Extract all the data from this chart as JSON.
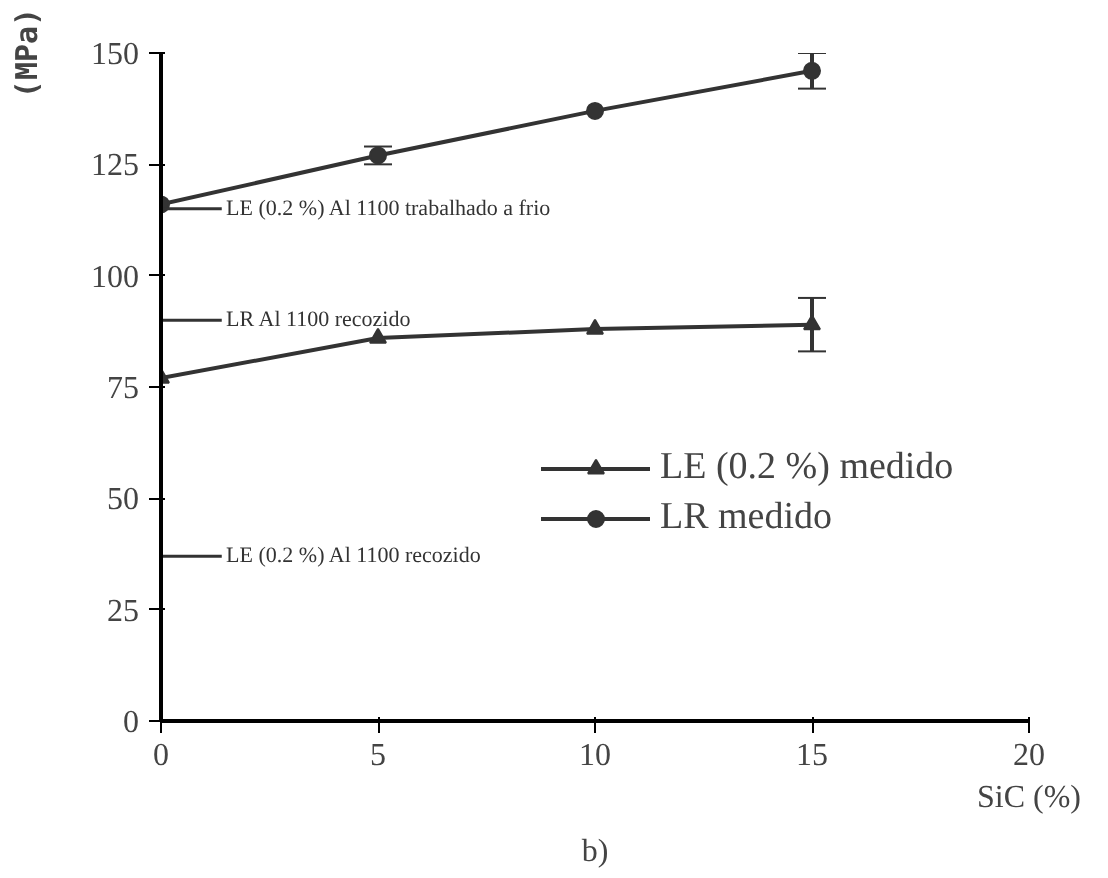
{
  "chart_data": {
    "type": "line",
    "xlabel": "SiC (%)",
    "ylabel": "(MPa)",
    "x": [
      0,
      5,
      10,
      15
    ],
    "xlim": [
      0,
      20
    ],
    "ylim": [
      0,
      150
    ],
    "xticks": [
      0,
      5,
      10,
      15,
      20
    ],
    "yticks": [
      0,
      25,
      50,
      75,
      100,
      125,
      150
    ],
    "grid": false,
    "legend": "right",
    "line_style": "solid",
    "series": [
      {
        "name": "LE (0.2 %) medido",
        "color": "#333333",
        "marker": "triangle",
        "values": [
          77,
          86,
          88,
          89
        ],
        "errors": [
          null,
          null,
          null,
          6
        ]
      },
      {
        "name": "LR medido",
        "color": "#333333",
        "marker": "circle",
        "values": [
          116,
          127,
          137,
          146
        ],
        "errors": [
          null,
          2,
          null,
          4
        ]
      }
    ],
    "ref_lines": [
      {
        "axis": "y",
        "value": 115,
        "label": "LE (0.2 %) Al 1100 trabalhado a frio"
      },
      {
        "axis": "y",
        "value": 90,
        "label": "LR Al 1100 recozido"
      },
      {
        "axis": "y",
        "value": 37,
        "label": "LE (0.2 %) Al 1100 recozido"
      }
    ],
    "annotations": [
      "b)"
    ]
  }
}
